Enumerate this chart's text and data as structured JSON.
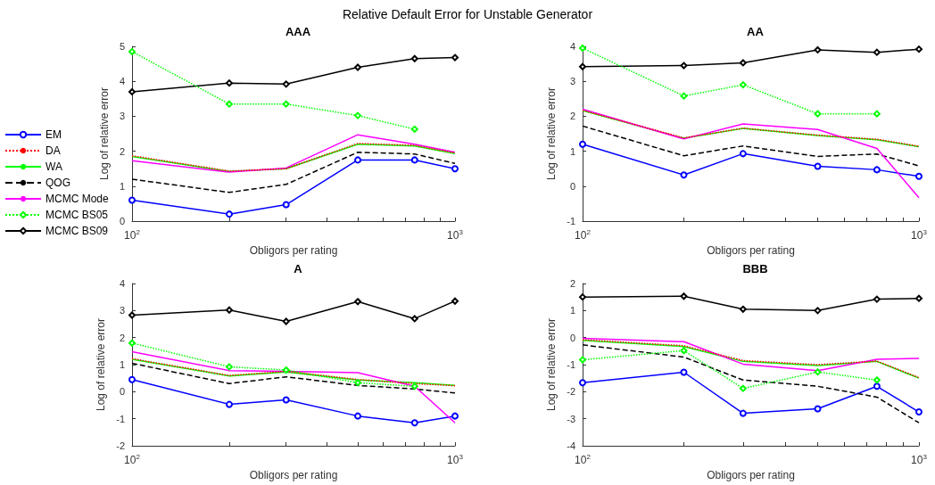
{
  "chart_data": [
    {
      "type": "line",
      "title": "AAA",
      "xlabel": "Obligors per rating",
      "ylabel": "Log of relative error",
      "annotations": [
        "Relative Default Error for Unstable Generator"
      ],
      "legend": "left",
      "log": "x",
      "grid": false,
      "x": [
        100,
        200,
        300,
        500,
        750,
        1000
      ],
      "xlim": [
        100,
        1000
      ],
      "xticks": [
        {
          "value": 100,
          "label": "10$^{2}$"
        },
        {
          "value": 200,
          "label": null
        },
        {
          "value": 300,
          "label": null
        },
        {
          "value": 400,
          "label": null
        },
        {
          "value": 500,
          "label": null
        },
        {
          "value": 600,
          "label": null
        },
        {
          "value": 700,
          "label": null
        },
        {
          "value": 800,
          "label": null
        },
        {
          "value": 900,
          "label": null
        },
        {
          "value": 1000,
          "label": "10$^{3}$"
        }
      ],
      "ylim": [
        0,
        5
      ],
      "yticks": [
        0,
        1,
        2,
        3,
        4,
        5
      ],
      "series": [
        {
          "name": "EM",
          "color": "#0000ff",
          "line_style": "solid",
          "marker": "circle",
          "values": [
            0.6,
            0.2,
            0.47,
            1.75,
            1.75,
            1.5
          ]
        },
        {
          "name": "DA",
          "color": "#ff0000",
          "line_style": "dotted",
          "marker": "none",
          "values": [
            1.87,
            1.43,
            1.5,
            2.22,
            2.17,
            1.95
          ]
        },
        {
          "name": "WA",
          "color": "#00ff00",
          "line_style": "solid",
          "marker": "none",
          "values": [
            1.85,
            1.42,
            1.5,
            2.2,
            2.15,
            1.93
          ]
        },
        {
          "name": "QOG",
          "color": "#000000",
          "line_style": "dashed",
          "marker": "none",
          "values": [
            1.2,
            0.82,
            1.05,
            1.97,
            1.92,
            1.65
          ]
        },
        {
          "name": "MCMC Mode",
          "color": "#ff00ff",
          "line_style": "solid",
          "marker": "none",
          "values": [
            1.73,
            1.4,
            1.52,
            2.47,
            2.2,
            1.97
          ]
        },
        {
          "name": "MCMC BS05",
          "color": "#00ff00",
          "line_style": "dotted",
          "marker": "diamond",
          "values": [
            4.85,
            3.35,
            3.35,
            3.02,
            2.63,
            null
          ]
        },
        {
          "name": "MCMC BS09",
          "color": "#000000",
          "line_style": "solid",
          "marker": "diamond",
          "values": [
            3.7,
            3.95,
            3.92,
            4.4,
            4.65,
            4.68
          ]
        }
      ]
    },
    {
      "type": "line",
      "title": "AA",
      "xlabel": "Obligors per rating",
      "ylabel": "Log of relative error",
      "log": "x",
      "grid": false,
      "x": [
        100,
        200,
        300,
        500,
        750,
        1000
      ],
      "xlim": [
        100,
        1000
      ],
      "xticks": [
        {
          "value": 100,
          "label": "10$^{2}$"
        },
        {
          "value": 200,
          "label": null
        },
        {
          "value": 300,
          "label": null
        },
        {
          "value": 400,
          "label": null
        },
        {
          "value": 500,
          "label": null
        },
        {
          "value": 600,
          "label": null
        },
        {
          "value": 700,
          "label": null
        },
        {
          "value": 800,
          "label": null
        },
        {
          "value": 900,
          "label": null
        },
        {
          "value": 1000,
          "label": "10$^{3}$"
        }
      ],
      "ylim": [
        -1,
        4
      ],
      "yticks": [
        -1,
        0,
        1,
        2,
        3,
        4
      ],
      "series": [
        {
          "color": "#0000ff",
          "line_style": "solid",
          "marker": "circle",
          "values": [
            1.2,
            0.32,
            0.93,
            0.57,
            0.47,
            0.28
          ]
        },
        {
          "color": "#ff0000",
          "line_style": "dotted",
          "marker": "none",
          "values": [
            2.17,
            1.38,
            1.66,
            1.46,
            1.34,
            1.14
          ]
        },
        {
          "color": "#00ff00",
          "line_style": "solid",
          "marker": "none",
          "values": [
            2.16,
            1.37,
            1.65,
            1.45,
            1.33,
            1.13
          ]
        },
        {
          "color": "#000000",
          "line_style": "dashed",
          "marker": "none",
          "values": [
            1.72,
            0.87,
            1.15,
            0.85,
            0.92,
            0.58
          ]
        },
        {
          "color": "#ff00ff",
          "line_style": "solid",
          "marker": "none",
          "values": [
            2.2,
            1.35,
            1.78,
            1.62,
            1.08,
            -0.33
          ]
        },
        {
          "color": "#00ff00",
          "line_style": "dotted",
          "marker": "diamond",
          "values": [
            3.95,
            2.58,
            2.9,
            2.07,
            2.07,
            null
          ]
        },
        {
          "color": "#000000",
          "line_style": "solid",
          "marker": "diamond",
          "values": [
            3.42,
            3.45,
            3.53,
            3.9,
            3.83,
            3.92
          ]
        }
      ]
    },
    {
      "type": "line",
      "title": "A",
      "xlabel": "Obligors per rating",
      "ylabel": "Log of relative error",
      "log": "x",
      "grid": false,
      "x": [
        100,
        200,
        300,
        500,
        750,
        1000
      ],
      "xlim": [
        100,
        1000
      ],
      "xticks": [
        {
          "value": 100,
          "label": "10$^{2}$"
        },
        {
          "value": 200,
          "label": null
        },
        {
          "value": 300,
          "label": null
        },
        {
          "value": 400,
          "label": null
        },
        {
          "value": 500,
          "label": null
        },
        {
          "value": 600,
          "label": null
        },
        {
          "value": 700,
          "label": null
        },
        {
          "value": 800,
          "label": null
        },
        {
          "value": 900,
          "label": null
        },
        {
          "value": 1000,
          "label": "10$^{3}$"
        }
      ],
      "ylim": [
        -2,
        4
      ],
      "yticks": [
        -2,
        -1,
        0,
        1,
        2,
        3,
        4
      ],
      "series": [
        {
          "color": "#0000ff",
          "line_style": "solid",
          "marker": "circle",
          "values": [
            0.45,
            -0.47,
            -0.3,
            -0.9,
            -1.15,
            -0.9
          ]
        },
        {
          "color": "#ff0000",
          "line_style": "dotted",
          "marker": "none",
          "values": [
            1.22,
            0.6,
            0.75,
            0.45,
            0.3,
            0.22
          ]
        },
        {
          "color": "#00ff00",
          "line_style": "solid",
          "marker": "none",
          "values": [
            1.2,
            0.58,
            0.73,
            0.43,
            0.33,
            0.23
          ]
        },
        {
          "color": "#000000",
          "line_style": "dashed",
          "marker": "none",
          "values": [
            1.05,
            0.3,
            0.55,
            0.23,
            0.1,
            -0.05
          ]
        },
        {
          "color": "#ff00ff",
          "line_style": "solid",
          "marker": "none",
          "values": [
            1.48,
            0.78,
            0.75,
            0.7,
            0.2,
            -1.15
          ]
        },
        {
          "color": "#00ff00",
          "line_style": "dotted",
          "marker": "diamond",
          "values": [
            1.8,
            0.92,
            0.8,
            0.33,
            0.2,
            null
          ]
        },
        {
          "color": "#000000",
          "line_style": "solid",
          "marker": "diamond",
          "values": [
            2.83,
            3.02,
            2.6,
            3.33,
            2.7,
            3.35
          ]
        }
      ]
    },
    {
      "type": "line",
      "title": "BBB",
      "xlabel": "Obligors per rating",
      "ylabel": "Log of relative error",
      "log": "x",
      "grid": false,
      "x": [
        100,
        200,
        300,
        500,
        750,
        1000
      ],
      "xlim": [
        100,
        1000
      ],
      "xticks": [
        {
          "value": 100,
          "label": "10$^{2}$"
        },
        {
          "value": 200,
          "label": null
        },
        {
          "value": 300,
          "label": null
        },
        {
          "value": 400,
          "label": null
        },
        {
          "value": 500,
          "label": null
        },
        {
          "value": 600,
          "label": null
        },
        {
          "value": 700,
          "label": null
        },
        {
          "value": 800,
          "label": null
        },
        {
          "value": 900,
          "label": null
        },
        {
          "value": 1000,
          "label": "10$^{3}$"
        }
      ],
      "ylim": [
        -4,
        2
      ],
      "yticks": [
        -4,
        -3,
        -2,
        -1,
        0,
        1,
        2
      ],
      "series": [
        {
          "color": "#0000ff",
          "line_style": "solid",
          "marker": "circle",
          "values": [
            -1.67,
            -1.28,
            -2.8,
            -2.63,
            -1.8,
            -2.75
          ]
        },
        {
          "color": "#ff0000",
          "line_style": "dotted",
          "marker": "none",
          "values": [
            -0.08,
            -0.3,
            -0.85,
            -1.0,
            -0.87,
            -1.48
          ]
        },
        {
          "color": "#00ff00",
          "line_style": "solid",
          "marker": "none",
          "values": [
            -0.1,
            -0.33,
            -0.88,
            -1.03,
            -0.88,
            -1.5
          ]
        },
        {
          "color": "#000000",
          "line_style": "dashed",
          "marker": "none",
          "values": [
            -0.27,
            -0.72,
            -1.57,
            -1.8,
            -2.2,
            -3.15
          ]
        },
        {
          "color": "#ff00ff",
          "line_style": "solid",
          "marker": "none",
          "values": [
            -0.03,
            -0.15,
            -0.98,
            -1.22,
            -0.8,
            -0.77
          ]
        },
        {
          "color": "#00ff00",
          "line_style": "dotted",
          "marker": "diamond",
          "values": [
            -0.82,
            -0.48,
            -1.88,
            -1.27,
            -1.57,
            null
          ]
        },
        {
          "color": "#000000",
          "line_style": "solid",
          "marker": "diamond",
          "values": [
            1.5,
            1.53,
            1.05,
            1.0,
            1.42,
            1.45
          ]
        }
      ]
    }
  ]
}
